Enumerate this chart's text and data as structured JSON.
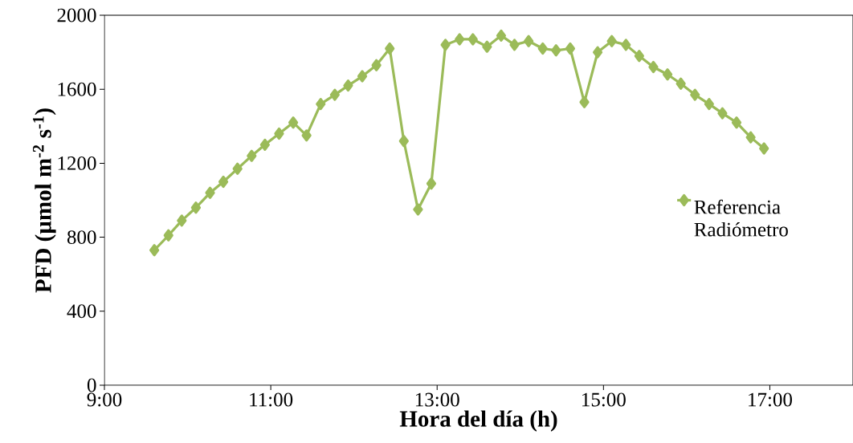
{
  "chart_data": {
    "type": "line",
    "xlabel": "Hora del día (h)",
    "ylabel": "PFD (µmol m$^{-2}$ s$^{-1}$)",
    "x": [
      9.6,
      9.77,
      9.93,
      10.1,
      10.27,
      10.43,
      10.6,
      10.77,
      10.93,
      11.1,
      11.27,
      11.43,
      11.6,
      11.77,
      11.93,
      12.1,
      12.27,
      12.43,
      12.6,
      12.77,
      12.93,
      13.1,
      13.27,
      13.43,
      13.6,
      13.77,
      13.93,
      14.1,
      14.27,
      14.43,
      14.6,
      14.77,
      14.93,
      15.1,
      15.27,
      15.43,
      15.6,
      15.77,
      15.93,
      16.1,
      16.27,
      16.43,
      16.6,
      16.77,
      16.93
    ],
    "series": [
      {
        "name": "Referencia Radiómetro",
        "color": "#9bbb59",
        "values": [
          730,
          810,
          890,
          960,
          1040,
          1100,
          1170,
          1240,
          1300,
          1360,
          1420,
          1350,
          1520,
          1570,
          1620,
          1670,
          1730,
          1820,
          1320,
          950,
          1090,
          1840,
          1870,
          1870,
          1830,
          1890,
          1840,
          1860,
          1820,
          1810,
          1820,
          1530,
          1800,
          1860,
          1840,
          1780,
          1720,
          1680,
          1630,
          1570,
          1520,
          1470,
          1420,
          1340,
          1280
        ]
      }
    ],
    "xlim": [
      9,
      18
    ],
    "ylim": [
      0,
      2000
    ],
    "xticks": [
      {
        "value": 9,
        "label": "9:00"
      },
      {
        "value": 11,
        "label": "11:00"
      },
      {
        "value": 13,
        "label": "13:00"
      },
      {
        "value": 15,
        "label": "15:00"
      },
      {
        "value": 17,
        "label": "17:00"
      }
    ],
    "yticks": [
      0,
      400,
      800,
      1200,
      1600,
      2000
    ],
    "marker": "diamond",
    "line_style": "solid",
    "legend": "right",
    "grid": false
  }
}
